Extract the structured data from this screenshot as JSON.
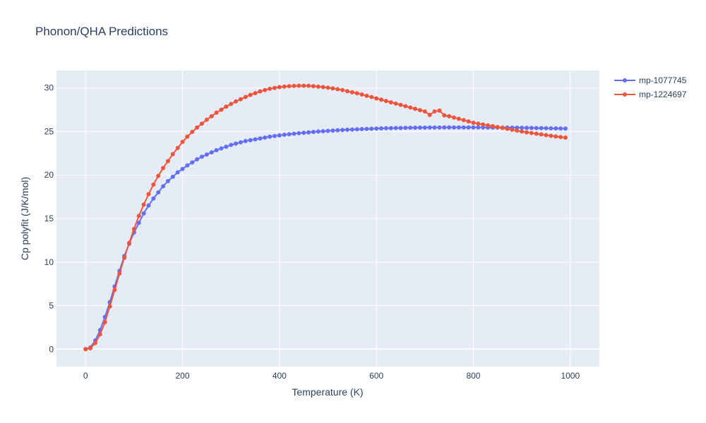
{
  "chart_data": {
    "type": "line",
    "title": "Phonon/QHA Predictions",
    "xlabel": "Temperature (K)",
    "ylabel": "Cp polyfit (J/K/mol)",
    "xlim": [
      -60,
      1060
    ],
    "ylim": [
      -2,
      32
    ],
    "x_ticks": [
      0,
      200,
      400,
      600,
      800,
      1000
    ],
    "y_ticks": [
      0,
      5,
      10,
      15,
      20,
      25,
      30
    ],
    "grid": true,
    "legend_position": "top-right",
    "series": [
      {
        "name": "mp-1077745",
        "color": "#636efa",
        "x": [
          0,
          10,
          20,
          30,
          40,
          50,
          60,
          70,
          80,
          90,
          100,
          110,
          120,
          130,
          140,
          150,
          160,
          170,
          180,
          190,
          200,
          210,
          220,
          230,
          240,
          250,
          260,
          270,
          280,
          290,
          300,
          310,
          320,
          330,
          340,
          350,
          360,
          370,
          380,
          390,
          400,
          410,
          420,
          430,
          440,
          450,
          460,
          470,
          480,
          490,
          500,
          510,
          520,
          530,
          540,
          550,
          560,
          570,
          580,
          590,
          600,
          610,
          620,
          630,
          640,
          650,
          660,
          670,
          680,
          690,
          700,
          710,
          720,
          730,
          740,
          750,
          760,
          770,
          780,
          790,
          800,
          810,
          820,
          830,
          840,
          850,
          860,
          870,
          880,
          890,
          900,
          910,
          920,
          930,
          940,
          950,
          960,
          970,
          980,
          990
        ],
        "y": [
          0.0,
          0.2,
          1.0,
          2.2,
          3.7,
          5.4,
          7.2,
          9.0,
          10.7,
          12.1,
          13.4,
          14.5,
          15.6,
          16.5,
          17.3,
          18.0,
          18.7,
          19.3,
          19.8,
          20.3,
          20.7,
          21.1,
          21.45,
          21.8,
          22.1,
          22.35,
          22.6,
          22.85,
          23.05,
          23.25,
          23.45,
          23.6,
          23.75,
          23.9,
          24.0,
          24.1,
          24.2,
          24.3,
          24.4,
          24.48,
          24.55,
          24.62,
          24.68,
          24.74,
          24.8,
          24.85,
          24.9,
          24.95,
          25.0,
          25.03,
          25.07,
          25.1,
          25.14,
          25.17,
          25.2,
          25.22,
          25.25,
          25.27,
          25.29,
          25.31,
          25.33,
          25.35,
          25.37,
          25.38,
          25.39,
          25.4,
          25.41,
          25.42,
          25.43,
          25.44,
          25.44,
          25.45,
          25.45,
          25.45,
          25.46,
          25.46,
          25.46,
          25.46,
          25.46,
          25.46,
          25.46,
          25.46,
          25.46,
          25.45,
          25.45,
          25.45,
          25.44,
          25.44,
          25.43,
          25.43,
          25.42,
          25.41,
          25.4,
          25.39,
          25.38,
          25.37,
          25.36,
          25.35,
          25.34,
          25.33
        ]
      },
      {
        "name": "mp-1224697",
        "color": "#ef553b",
        "x": [
          0,
          10,
          20,
          30,
          40,
          50,
          60,
          70,
          80,
          90,
          100,
          110,
          120,
          130,
          140,
          150,
          160,
          170,
          180,
          190,
          200,
          210,
          220,
          230,
          240,
          250,
          260,
          270,
          280,
          290,
          300,
          310,
          320,
          330,
          340,
          350,
          360,
          370,
          380,
          390,
          400,
          410,
          420,
          430,
          440,
          450,
          460,
          470,
          480,
          490,
          500,
          510,
          520,
          530,
          540,
          550,
          560,
          570,
          580,
          590,
          600,
          610,
          620,
          630,
          640,
          650,
          660,
          670,
          680,
          690,
          700,
          710,
          720,
          730,
          740,
          750,
          760,
          770,
          780,
          790,
          800,
          810,
          820,
          830,
          840,
          850,
          860,
          870,
          880,
          890,
          900,
          910,
          920,
          930,
          940,
          950,
          960,
          970,
          980,
          990
        ],
        "y": [
          0.0,
          0.1,
          0.7,
          1.7,
          3.1,
          4.9,
          6.8,
          8.7,
          10.5,
          12.2,
          13.8,
          15.3,
          16.6,
          17.8,
          18.9,
          19.9,
          20.8,
          21.6,
          22.4,
          23.1,
          23.8,
          24.4,
          24.95,
          25.45,
          25.9,
          26.35,
          26.75,
          27.15,
          27.5,
          27.85,
          28.15,
          28.45,
          28.7,
          28.95,
          29.2,
          29.4,
          29.6,
          29.75,
          29.9,
          30.0,
          30.1,
          30.15,
          30.2,
          30.23,
          30.25,
          30.25,
          30.24,
          30.2,
          30.15,
          30.1,
          30.03,
          29.95,
          29.85,
          29.75,
          29.62,
          29.5,
          29.38,
          29.25,
          29.1,
          28.95,
          28.8,
          28.65,
          28.5,
          28.35,
          28.2,
          28.05,
          27.9,
          27.75,
          27.6,
          27.45,
          27.3,
          26.9,
          27.3,
          27.4,
          26.85,
          26.75,
          26.6,
          26.45,
          26.3,
          26.15,
          26.0,
          25.9,
          25.8,
          25.7,
          25.6,
          25.5,
          25.4,
          25.3,
          25.2,
          25.1,
          25.0,
          24.9,
          24.82,
          24.74,
          24.66,
          24.58,
          24.5,
          24.43,
          24.36,
          24.3
        ]
      }
    ]
  }
}
